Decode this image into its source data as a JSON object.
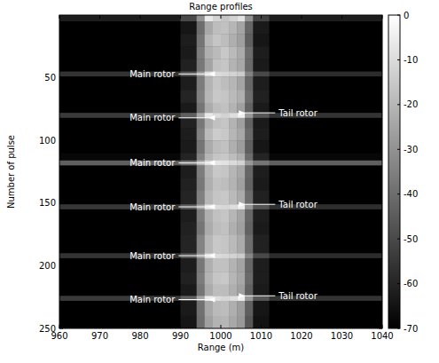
{
  "chart_data": {
    "type": "heatmap",
    "title": "Range profiles",
    "x_label": "Range (m)",
    "y_label": "Number of pulse",
    "xlim": [
      960,
      1040
    ],
    "xticks": [
      960,
      970,
      980,
      990,
      1000,
      1010,
      1020,
      1030,
      1040
    ],
    "ylim": [
      0,
      250
    ],
    "yticks": [
      50,
      100,
      150,
      200,
      250
    ],
    "x_bins": [
      960,
      990,
      994,
      996,
      998,
      1000,
      1002,
      1004,
      1006,
      1008,
      1012,
      1040
    ],
    "y_bins": [
      0,
      5,
      15,
      25,
      35,
      45,
      49,
      60,
      70,
      78,
      82,
      90,
      100,
      110,
      116,
      120,
      130,
      140,
      151,
      155,
      165,
      175,
      190,
      194,
      205,
      215,
      224,
      228,
      240,
      250
    ],
    "cells": [
      [
        -62,
        -50,
        -30,
        -6,
        -12,
        -16,
        -12,
        -8,
        -30,
        -52,
        -62
      ],
      [
        -70,
        -64,
        -40,
        -24,
        -18,
        -17,
        -20,
        -25,
        -42,
        -63,
        -70
      ],
      [
        -70,
        -62,
        -38,
        -20,
        -16,
        -18,
        -22,
        -26,
        -44,
        -64,
        -70
      ],
      [
        -70,
        -63,
        -36,
        -22,
        -19,
        -15,
        -19,
        -23,
        -40,
        -62,
        -70
      ],
      [
        -70,
        -61,
        -37,
        -25,
        -17,
        -16,
        -21,
        -24,
        -41,
        -63,
        -70
      ],
      [
        -56,
        -46,
        -26,
        -9,
        -10,
        -11,
        -12,
        -14,
        -34,
        -50,
        -58
      ],
      [
        -70,
        -62,
        -36,
        -21,
        -16,
        -18,
        -20,
        -25,
        -42,
        -62,
        -70
      ],
      [
        -70,
        -60,
        -35,
        -20,
        -15,
        -16,
        -19,
        -22,
        -40,
        -61,
        -70
      ],
      [
        -70,
        -63,
        -38,
        -23,
        -18,
        -17,
        -21,
        -26,
        -43,
        -63,
        -70
      ],
      [
        -54,
        -44,
        -24,
        -6,
        -10,
        -12,
        -9,
        -4,
        -28,
        -46,
        -56
      ],
      [
        -70,
        -61,
        -37,
        -22,
        -17,
        -16,
        -21,
        -26,
        -43,
        -63,
        -70
      ],
      [
        -70,
        -62,
        -35,
        -19,
        -14,
        -15,
        -20,
        -24,
        -41,
        -62,
        -70
      ],
      [
        -70,
        -63,
        -38,
        -23,
        -18,
        -17,
        -22,
        -27,
        -44,
        -64,
        -70
      ],
      [
        -68,
        -60,
        -34,
        -20,
        -16,
        -15,
        -18,
        -22,
        -40,
        -60,
        -68
      ],
      [
        -44,
        -38,
        -20,
        -9,
        -7,
        -8,
        -10,
        -12,
        -28,
        -38,
        -44
      ],
      [
        -70,
        -62,
        -36,
        -21,
        -15,
        -16,
        -20,
        -24,
        -42,
        -62,
        -70
      ],
      [
        -70,
        -61,
        -37,
        -22,
        -17,
        -18,
        -21,
        -26,
        -43,
        -63,
        -70
      ],
      [
        -70,
        -60,
        -35,
        -20,
        -16,
        -15,
        -19,
        -23,
        -40,
        -61,
        -70
      ],
      [
        -55,
        -45,
        -25,
        -7,
        -10,
        -11,
        -9,
        -5,
        -29,
        -47,
        -57
      ],
      [
        -70,
        -62,
        -36,
        -22,
        -17,
        -16,
        -20,
        -25,
        -42,
        -62,
        -70
      ],
      [
        -70,
        -61,
        -38,
        -23,
        -18,
        -17,
        -22,
        -26,
        -43,
        -63,
        -70
      ],
      [
        -70,
        -60,
        -34,
        -20,
        -15,
        -16,
        -19,
        -23,
        -40,
        -61,
        -70
      ],
      [
        -56,
        -46,
        -26,
        -8,
        -10,
        -11,
        -12,
        -14,
        -33,
        -50,
        -58
      ],
      [
        -70,
        -62,
        -37,
        -22,
        -17,
        -17,
        -21,
        -25,
        -42,
        -62,
        -70
      ],
      [
        -70,
        -61,
        -36,
        -21,
        -16,
        -15,
        -20,
        -24,
        -41,
        -62,
        -70
      ],
      [
        -70,
        -63,
        -38,
        -23,
        -18,
        -18,
        -22,
        -26,
        -43,
        -63,
        -70
      ],
      [
        -54,
        -44,
        -24,
        -5,
        -9,
        -11,
        -9,
        -4,
        -28,
        -46,
        -56
      ],
      [
        -70,
        -63,
        -39,
        -24,
        -19,
        -18,
        -22,
        -27,
        -44,
        -64,
        -70
      ],
      [
        -70,
        -64,
        -40,
        -26,
        -21,
        -20,
        -24,
        -28,
        -46,
        -65,
        -70
      ]
    ],
    "colorbar": {
      "lim": [
        -70,
        0
      ],
      "ticks": [
        0,
        -10,
        -20,
        -30,
        -40,
        -50,
        -60,
        -70
      ]
    },
    "annotations": [
      {
        "text": "Main rotor",
        "x": 997,
        "y": 47,
        "side": "left"
      },
      {
        "text": "Main rotor",
        "x": 997,
        "y": 82,
        "side": "left"
      },
      {
        "text": "Main rotor",
        "x": 997,
        "y": 118,
        "side": "left"
      },
      {
        "text": "Main rotor",
        "x": 997,
        "y": 153,
        "side": "left"
      },
      {
        "text": "Main rotor",
        "x": 997,
        "y": 192,
        "side": "left"
      },
      {
        "text": "Main rotor",
        "x": 997,
        "y": 227,
        "side": "left"
      },
      {
        "text": "Tail rotor",
        "x": 1006,
        "y": 78,
        "side": "right"
      },
      {
        "text": "Tail rotor",
        "x": 1006,
        "y": 151,
        "side": "right"
      },
      {
        "text": "Tail rotor",
        "x": 1006,
        "y": 224,
        "side": "right"
      }
    ]
  }
}
